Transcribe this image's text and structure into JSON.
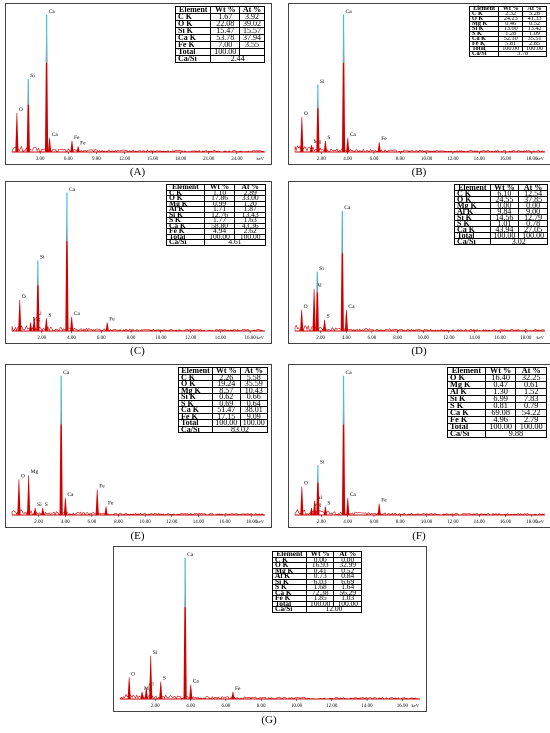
{
  "chart_data": [
    {
      "type": "table_and_spectrum",
      "panel_label": "(A)",
      "x_unit": "keV",
      "x_ticks": [
        "3.00",
        "6.00",
        "9.00",
        "12.00",
        "15.00",
        "18.00",
        "21.00",
        "24.00"
      ],
      "xlim": [
        0,
        27
      ],
      "table": {
        "headers": [
          "Element",
          "Wt %",
          "At %"
        ],
        "rows": [
          [
            "C K",
            "1.67",
            "3.92"
          ],
          [
            "O K",
            "22.08",
            "39.02"
          ],
          [
            "Si K",
            "15.47",
            "15.57"
          ],
          [
            "Ca K",
            "53.78",
            "37.94"
          ],
          [
            "Fe K",
            "7.00",
            "3.55"
          ]
        ],
        "total": [
          "Total",
          "100.00",
          ""
        ],
        "ratio": [
          "Ca/Si",
          "2.44"
        ]
      },
      "peaks": [
        {
          "label": "O",
          "x": 0.52,
          "y": 0.28
        },
        {
          "label": "Si",
          "x": 1.74,
          "y": 0.52
        },
        {
          "label": "Ca",
          "x": 3.69,
          "y": 0.98
        },
        {
          "label": "Ca",
          "x": 4.01,
          "y": 0.1
        },
        {
          "label": "Fe",
          "x": 6.4,
          "y": 0.08
        },
        {
          "label": "Fe",
          "x": 7.06,
          "y": 0.04
        }
      ]
    },
    {
      "type": "table_and_spectrum",
      "panel_label": "(B)",
      "x_unit": "keV",
      "x_ticks": [
        "2.00",
        "4.00",
        "6.00",
        "8.00",
        "10.00",
        "12.00",
        "14.00",
        "16.00",
        "18.00"
      ],
      "xlim": [
        0,
        19
      ],
      "table": {
        "headers": [
          "Element",
          "Wt %",
          "At %"
        ],
        "rows": [
          [
            "C K",
            "2.32",
            "5.28"
          ],
          [
            "O K",
            "24.23",
            "41.33"
          ],
          [
            "Mg K",
            "0.46",
            "0.52"
          ],
          [
            "Si K",
            "13.00",
            "13.42"
          ],
          [
            "S K",
            "1.28",
            "1.09"
          ],
          [
            "Ca K",
            "52.10",
            "35.51"
          ],
          [
            "Fe K",
            "5.81",
            "2.85"
          ]
        ],
        "total": [
          "Total",
          "100.00",
          "100.00"
        ],
        "ratio": [
          "Ca/Si",
          "3.78"
        ]
      },
      "peaks": [
        {
          "label": "O",
          "x": 0.52,
          "y": 0.25
        },
        {
          "label": "Mg",
          "x": 1.25,
          "y": 0.05
        },
        {
          "label": "Si",
          "x": 1.74,
          "y": 0.48
        },
        {
          "label": "S",
          "x": 2.31,
          "y": 0.08
        },
        {
          "label": "Ca",
          "x": 3.69,
          "y": 0.98
        },
        {
          "label": "Ca",
          "x": 4.01,
          "y": 0.1
        },
        {
          "label": "Fe",
          "x": 6.4,
          "y": 0.07
        }
      ]
    },
    {
      "type": "table_and_spectrum",
      "panel_label": "(C)",
      "x_unit": "keV",
      "x_ticks": [
        "2.00",
        "4.00",
        "6.00",
        "8.00",
        "10.00",
        "12.00",
        "14.00",
        "16.00"
      ],
      "xlim": [
        0,
        17
      ],
      "table": {
        "headers": [
          "Element",
          "Wt %",
          "At %"
        ],
        "rows": [
          [
            "C K",
            "1.10",
            "2.89"
          ],
          [
            "O K",
            "17.86",
            "33.00"
          ],
          [
            "Mg K",
            "0.99",
            "1.20"
          ],
          [
            "Al K",
            "1.71",
            "1.87"
          ],
          [
            "Si K",
            "12.76",
            "13.43"
          ],
          [
            "S K",
            "1.77",
            "1.63"
          ],
          [
            "Ca K",
            "58.80",
            "43.36"
          ],
          [
            "Fe K",
            "4.94",
            "2.62"
          ]
        ],
        "total": [
          "Total",
          "100.00",
          "100.00"
        ],
        "ratio": [
          "Ca/Si",
          "4.61"
        ]
      },
      "peaks": [
        {
          "label": "O",
          "x": 0.52,
          "y": 0.22
        },
        {
          "label": "Mg",
          "x": 1.25,
          "y": 0.06
        },
        {
          "label": "Al",
          "x": 1.49,
          "y": 0.1
        },
        {
          "label": "Si",
          "x": 1.74,
          "y": 0.5
        },
        {
          "label": "S",
          "x": 2.31,
          "y": 0.09
        },
        {
          "label": "Ca",
          "x": 3.69,
          "y": 0.98
        },
        {
          "label": "Ca",
          "x": 4.01,
          "y": 0.1
        },
        {
          "label": "Fe",
          "x": 6.4,
          "y": 0.06
        }
      ]
    },
    {
      "type": "table_and_spectrum",
      "panel_label": "(D)",
      "x_unit": "keV",
      "x_ticks": [
        "2.00",
        "4.00",
        "6.00",
        "8.00",
        "10.00",
        "12.00",
        "14.00",
        "16.00",
        "18.00"
      ],
      "xlim": [
        0,
        19.5
      ],
      "table": {
        "headers": [
          "Element",
          "Wt %",
          "At %"
        ],
        "rows": [
          [
            "C K",
            "6.10",
            "12.54"
          ],
          [
            "O K",
            "24.55",
            "37.85"
          ],
          [
            "Mg K",
            "0.00",
            "0.00"
          ],
          [
            "Al K",
            "9.84",
            "9.00"
          ],
          [
            "Si K",
            "14.56",
            "12.79"
          ],
          [
            "S K",
            "1.01",
            "0.78"
          ],
          [
            "Ca K",
            "43.94",
            "27.05"
          ]
        ],
        "total": [
          "Total",
          "100.00",
          "100.00"
        ],
        "ratio": [
          "Ca/Si",
          "3.02"
        ]
      },
      "peaks": [
        {
          "label": "O",
          "x": 0.52,
          "y": 0.15
        },
        {
          "label": "Al",
          "x": 1.49,
          "y": 0.3
        },
        {
          "label": "Si",
          "x": 1.74,
          "y": 0.42
        },
        {
          "label": "S",
          "x": 2.31,
          "y": 0.08
        },
        {
          "label": "Ca",
          "x": 3.69,
          "y": 0.85
        },
        {
          "label": "Ca",
          "x": 4.01,
          "y": 0.15
        }
      ]
    },
    {
      "type": "table_and_spectrum",
      "panel_label": "(E)",
      "x_unit": "keV",
      "x_ticks": [
        "2.00",
        "4.00",
        "6.00",
        "8.00",
        "10.00",
        "12.00",
        "14.00",
        "16.00",
        "18.00"
      ],
      "xlim": [
        0,
        19
      ],
      "table": {
        "headers": [
          "Element",
          "Wt %",
          "At %"
        ],
        "rows": [
          [
            "C K",
            "2.26",
            "5.58"
          ],
          [
            "O K",
            "19.24",
            "35.59"
          ],
          [
            "Mg K",
            "8.57",
            "10.43"
          ],
          [
            "Si K",
            "0.62",
            "0.66"
          ],
          [
            "S K",
            "0.69",
            "0.64"
          ],
          [
            "Ca K",
            "51.47",
            "38.01"
          ],
          [
            "Fe K",
            "17.15",
            "9.09"
          ]
        ],
        "total": [
          "Total",
          "100.00",
          "100.00"
        ],
        "ratio": [
          "Ca/Si",
          "83.02"
        ]
      },
      "peaks": [
        {
          "label": "O",
          "x": 0.52,
          "y": 0.25
        },
        {
          "label": "Mg",
          "x": 1.25,
          "y": 0.28
        },
        {
          "label": "Si",
          "x": 1.74,
          "y": 0.05
        },
        {
          "label": "S",
          "x": 2.31,
          "y": 0.05
        },
        {
          "label": "Ca",
          "x": 3.69,
          "y": 0.98
        },
        {
          "label": "Ca",
          "x": 4.01,
          "y": 0.12
        },
        {
          "label": "Fe",
          "x": 6.4,
          "y": 0.18
        },
        {
          "label": "Fe",
          "x": 7.06,
          "y": 0.06
        }
      ]
    },
    {
      "type": "table_and_spectrum",
      "panel_label": "(F)",
      "x_unit": "keV",
      "x_ticks": [
        "2.00",
        "4.00",
        "6.00",
        "8.00",
        "10.00",
        "12.00",
        "14.00",
        "16.00",
        "18.00"
      ],
      "xlim": [
        0,
        19
      ],
      "table": {
        "headers": [
          "Element",
          "Wt %",
          "At %"
        ],
        "rows": [
          [
            "O K",
            "16.40",
            "32.25"
          ],
          [
            "Mg K",
            "0.47",
            "0.61"
          ],
          [
            "Al K",
            "1.30",
            "1.52"
          ],
          [
            "Si K",
            "6.99",
            "7.83"
          ],
          [
            "S K",
            "0.81",
            "0.79"
          ],
          [
            "Ca K",
            "69.08",
            "54.22"
          ],
          [
            "Fe K",
            "4.96",
            "2.79"
          ]
        ],
        "total": [
          "Total",
          "100.00",
          "100.00"
        ],
        "ratio": [
          "Ca/Si",
          "9.88"
        ]
      },
      "peaks": [
        {
          "label": "O",
          "x": 0.52,
          "y": 0.2
        },
        {
          "label": "Mg",
          "x": 1.25,
          "y": 0.05
        },
        {
          "label": "Al",
          "x": 1.49,
          "y": 0.1
        },
        {
          "label": "Si",
          "x": 1.74,
          "y": 0.35
        },
        {
          "label": "S",
          "x": 2.31,
          "y": 0.06
        },
        {
          "label": "Ca",
          "x": 3.69,
          "y": 0.98
        },
        {
          "label": "Ca",
          "x": 4.01,
          "y": 0.12
        },
        {
          "label": "Fe",
          "x": 6.4,
          "y": 0.08
        }
      ]
    },
    {
      "type": "table_and_spectrum",
      "panel_label": "(G)",
      "x_unit": "keV",
      "x_ticks": [
        "2.00",
        "4.00",
        "6.00",
        "8.00",
        "10.00",
        "12.00",
        "14.00",
        "16.00"
      ],
      "xlim": [
        0,
        17
      ],
      "table": {
        "headers": [
          "Element",
          "Wt %",
          "At %"
        ],
        "rows": [
          [
            "C K",
            "0.00",
            "0.00"
          ],
          [
            "O K",
            "16.93",
            "32.99"
          ],
          [
            "Mg K",
            "0.41",
            "0.52"
          ],
          [
            "Al K",
            "0.73",
            "0.84"
          ],
          [
            "Si K",
            "6.03",
            "6.69"
          ],
          [
            "S K",
            "1.68",
            "1.64"
          ],
          [
            "Ca K",
            "72.38",
            "56.29"
          ],
          [
            "Fe K",
            "1.85",
            "1.03"
          ]
        ],
        "total": [
          "Total",
          "100.00",
          "100.00"
        ],
        "ratio": [
          "Ca/Si",
          "12.00"
        ]
      },
      "peaks": [
        {
          "label": "O",
          "x": 0.52,
          "y": 0.15
        },
        {
          "label": "Mg",
          "x": 1.25,
          "y": 0.05
        },
        {
          "label": "Al",
          "x": 1.49,
          "y": 0.08
        },
        {
          "label": "Si",
          "x": 1.74,
          "y": 0.3
        },
        {
          "label": "S",
          "x": 2.31,
          "y": 0.12
        },
        {
          "label": "Ca",
          "x": 3.69,
          "y": 0.98
        },
        {
          "label": "Ca",
          "x": 4.01,
          "y": 0.1
        },
        {
          "label": "Fe",
          "x": 6.4,
          "y": 0.05
        }
      ]
    }
  ]
}
